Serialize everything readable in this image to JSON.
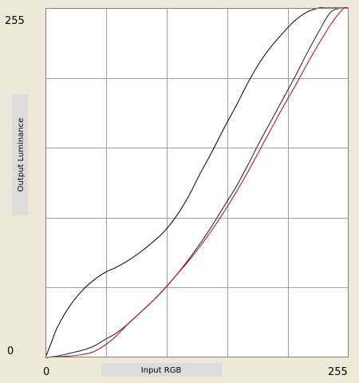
{
  "chart_data": {
    "type": "line",
    "title": "",
    "xlabel": "Input RGB",
    "ylabel": "Output Luminance",
    "xlim": [
      0,
      255
    ],
    "ylim": [
      0,
      255
    ],
    "x_tick_labels": [
      "0",
      "255"
    ],
    "y_tick_labels": [
      "0",
      "255"
    ],
    "grid": true,
    "grid_divisions": 5,
    "series": [
      {
        "color": "#000000",
        "x": [
          0,
          5,
          10,
          20,
          30,
          40,
          50,
          60,
          70,
          80,
          90,
          100,
          110,
          120,
          130,
          140,
          150,
          160,
          170,
          180,
          190,
          200,
          210,
          220,
          230,
          235,
          240,
          250,
          255
        ],
        "y": [
          0,
          11,
          22,
          37,
          48,
          56,
          62,
          66,
          71,
          77,
          84,
          92,
          103,
          117,
          134,
          150,
          167,
          183,
          200,
          215,
          227,
          237,
          246,
          252,
          255,
          255,
          255,
          255,
          255
        ]
      },
      {
        "color": "#1a1a3a",
        "x": [
          0,
          10,
          20,
          30,
          40,
          50,
          60,
          70,
          80,
          90,
          100,
          110,
          120,
          130,
          140,
          150,
          160,
          170,
          180,
          190,
          200,
          210,
          220,
          230,
          240,
          250,
          255
        ],
        "y": [
          0,
          1,
          3,
          5,
          8,
          13,
          18,
          25,
          33,
          41,
          50,
          60,
          71,
          83,
          96,
          110,
          124,
          140,
          157,
          173,
          189,
          205,
          222,
          238,
          252,
          255,
          255
        ]
      },
      {
        "color": "#cc0000",
        "x": [
          0,
          20,
          30,
          40,
          50,
          60,
          70,
          80,
          90,
          100,
          110,
          120,
          130,
          140,
          150,
          160,
          170,
          180,
          190,
          200,
          210,
          220,
          230,
          240,
          250,
          255
        ],
        "y": [
          0,
          1,
          2,
          4,
          9,
          16,
          25,
          33,
          41,
          50,
          60,
          70,
          81,
          93,
          106,
          120,
          135,
          151,
          167,
          183,
          198,
          214,
          229,
          243,
          254,
          255
        ]
      }
    ]
  },
  "colors": {
    "background": "#ece9d8",
    "plot_bg": "#ffffff",
    "grid": "#a0a0a0",
    "label_bg": "#dcdcdc"
  }
}
